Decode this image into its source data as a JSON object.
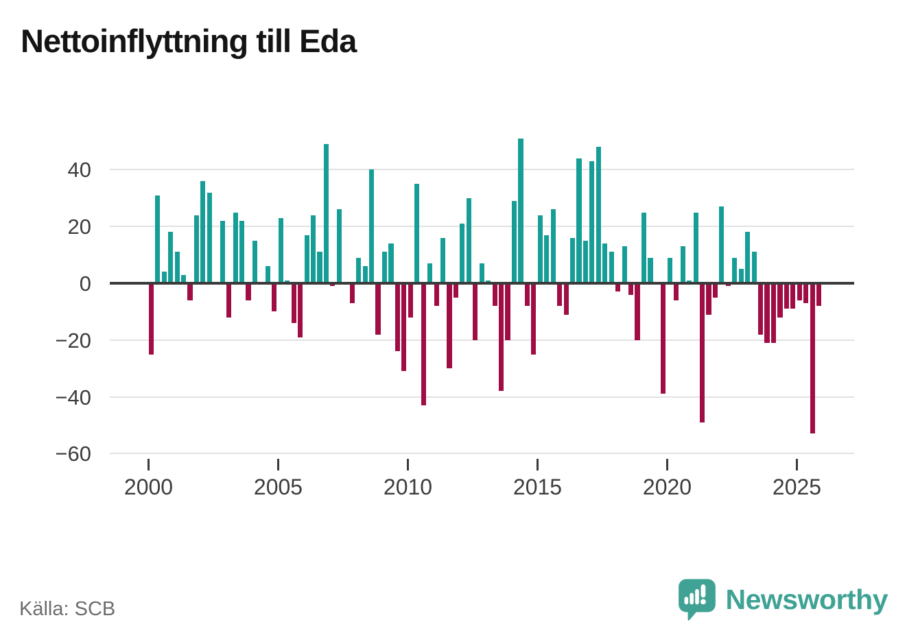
{
  "title": "Nettoinflyttning till Eda",
  "source": "Källa: SCB",
  "brand": {
    "name": "Newsworthy",
    "icon": "speech-bubble-bar-chart-icon",
    "color": "#3fa294"
  },
  "colors": {
    "positive_bar": "#169e96",
    "negative_bar": "#a00d45",
    "zero_line": "#3a3a3a",
    "gridline": "#e2e2e2",
    "axis_text": "#3c3c3c",
    "title_text": "#141414",
    "source_text": "#6d6d6d"
  },
  "chart_data": {
    "type": "bar",
    "title": "Nettoinflyttning till Eda",
    "frequency": "quarterly",
    "start_year": 2000,
    "ylim": [
      -60,
      52
    ],
    "grid": true,
    "y_ticks": [
      40,
      20,
      0,
      -20,
      -40,
      -60
    ],
    "y_tick_labels": [
      "40",
      "20",
      "0",
      "−20",
      "−40",
      "−60"
    ],
    "x_tick_years": [
      2000,
      2005,
      2010,
      2015,
      2020,
      2025
    ],
    "x_tick_labels": [
      "2000",
      "2005",
      "2010",
      "2015",
      "2020",
      "2025"
    ],
    "series": [
      {
        "name": "Nettoinflyttning",
        "values": [
          -25,
          31,
          4,
          18,
          11,
          3,
          -6,
          24,
          36,
          32,
          0,
          22,
          -12,
          25,
          22,
          -6,
          15,
          0,
          6,
          -10,
          23,
          1,
          -14,
          -19,
          17,
          24,
          11,
          49,
          -1,
          26,
          0,
          -7,
          9,
          6,
          40,
          -18,
          11,
          14,
          -24,
          -31,
          -12,
          35,
          -43,
          7,
          -8,
          16,
          -30,
          -5,
          21,
          30,
          -20,
          7,
          1,
          -8,
          -38,
          -20,
          29,
          51,
          -8,
          -25,
          24,
          17,
          26,
          -8,
          -11,
          16,
          44,
          15,
          43,
          48,
          14,
          11,
          -3,
          13,
          -4,
          -20,
          25,
          9,
          0,
          -39,
          9,
          -6,
          13,
          1,
          25,
          -49,
          -11,
          -5,
          27,
          -1,
          9,
          5,
          18,
          11,
          -18,
          -21,
          -21,
          -12,
          -9,
          -9,
          -6,
          -7,
          -53,
          -8
        ]
      }
    ]
  }
}
